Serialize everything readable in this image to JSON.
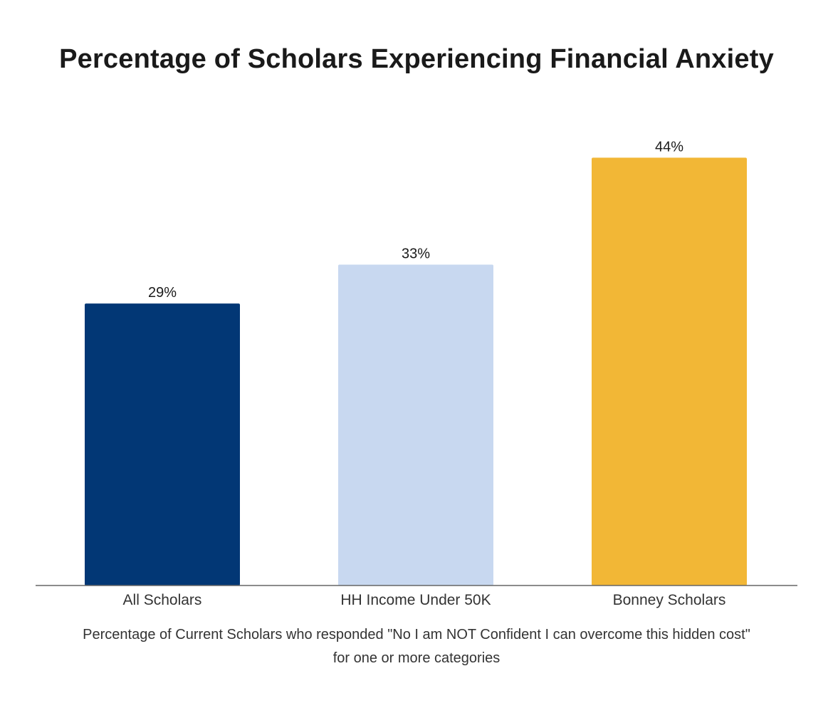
{
  "chart_data": {
    "type": "bar",
    "title": "Percentage of Scholars Experiencing Financial Anxiety",
    "categories": [
      "All Scholars",
      "HH Income Under 50K",
      "Bonney Scholars"
    ],
    "values": [
      29,
      33,
      44
    ],
    "value_labels": [
      "29%",
      "33%",
      "44%"
    ],
    "colors": [
      "#023775",
      "#c8d8f0",
      "#f2b736"
    ],
    "ylim": [
      0,
      50
    ],
    "grid": false,
    "legend": "none",
    "caption": [
      "Percentage of Current Scholars who responded \"No I am NOT Confident I can overcome this hidden cost\"",
      "for one or more categories"
    ]
  }
}
